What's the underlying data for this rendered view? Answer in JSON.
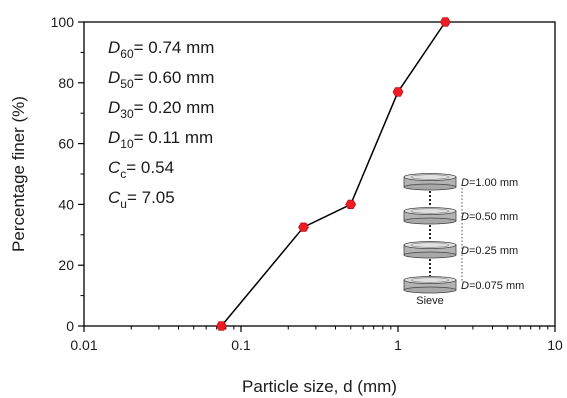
{
  "chart_data": {
    "type": "line",
    "xlabel": "Particle size, d (mm)",
    "ylabel": "Percentage finer (%)",
    "x_scale": "log",
    "xlim": [
      0.01,
      10
    ],
    "ylim": [
      0,
      100
    ],
    "x_ticks": [
      "0.01",
      "0.1",
      "1",
      "10"
    ],
    "y_ticks": [
      "0",
      "20",
      "40",
      "60",
      "80",
      "100"
    ],
    "grid": false,
    "series": [
      {
        "x": [
          0.075,
          0.25,
          0.5,
          1.0,
          2.0
        ],
        "y": [
          0,
          32.5,
          40,
          77,
          100
        ],
        "marker": "hexagon",
        "marker_color": "#ee1c25",
        "line_color": "#000000"
      }
    ],
    "annotations": {
      "lines": [
        {
          "sym": "D",
          "sub": "60",
          "rest": "= 0.74 mm"
        },
        {
          "sym": "D",
          "sub": "50",
          "rest": "= 0.60 mm"
        },
        {
          "sym": "D",
          "sub": "30",
          "rest": "= 0.20 mm"
        },
        {
          "sym": "D",
          "sub": "10",
          "rest": "= 0.11 mm"
        },
        {
          "sym": "C",
          "sub": "c",
          "rest": "= 0.54"
        },
        {
          "sym": "C",
          "sub": "u",
          "rest": "= 7.05"
        }
      ]
    },
    "sieve_inset": {
      "labels": [
        "=1.00 mm",
        "=0.50 mm",
        "=0.25 mm",
        "=0.075 mm"
      ],
      "symbol": "D",
      "caption": "Sieve"
    }
  }
}
